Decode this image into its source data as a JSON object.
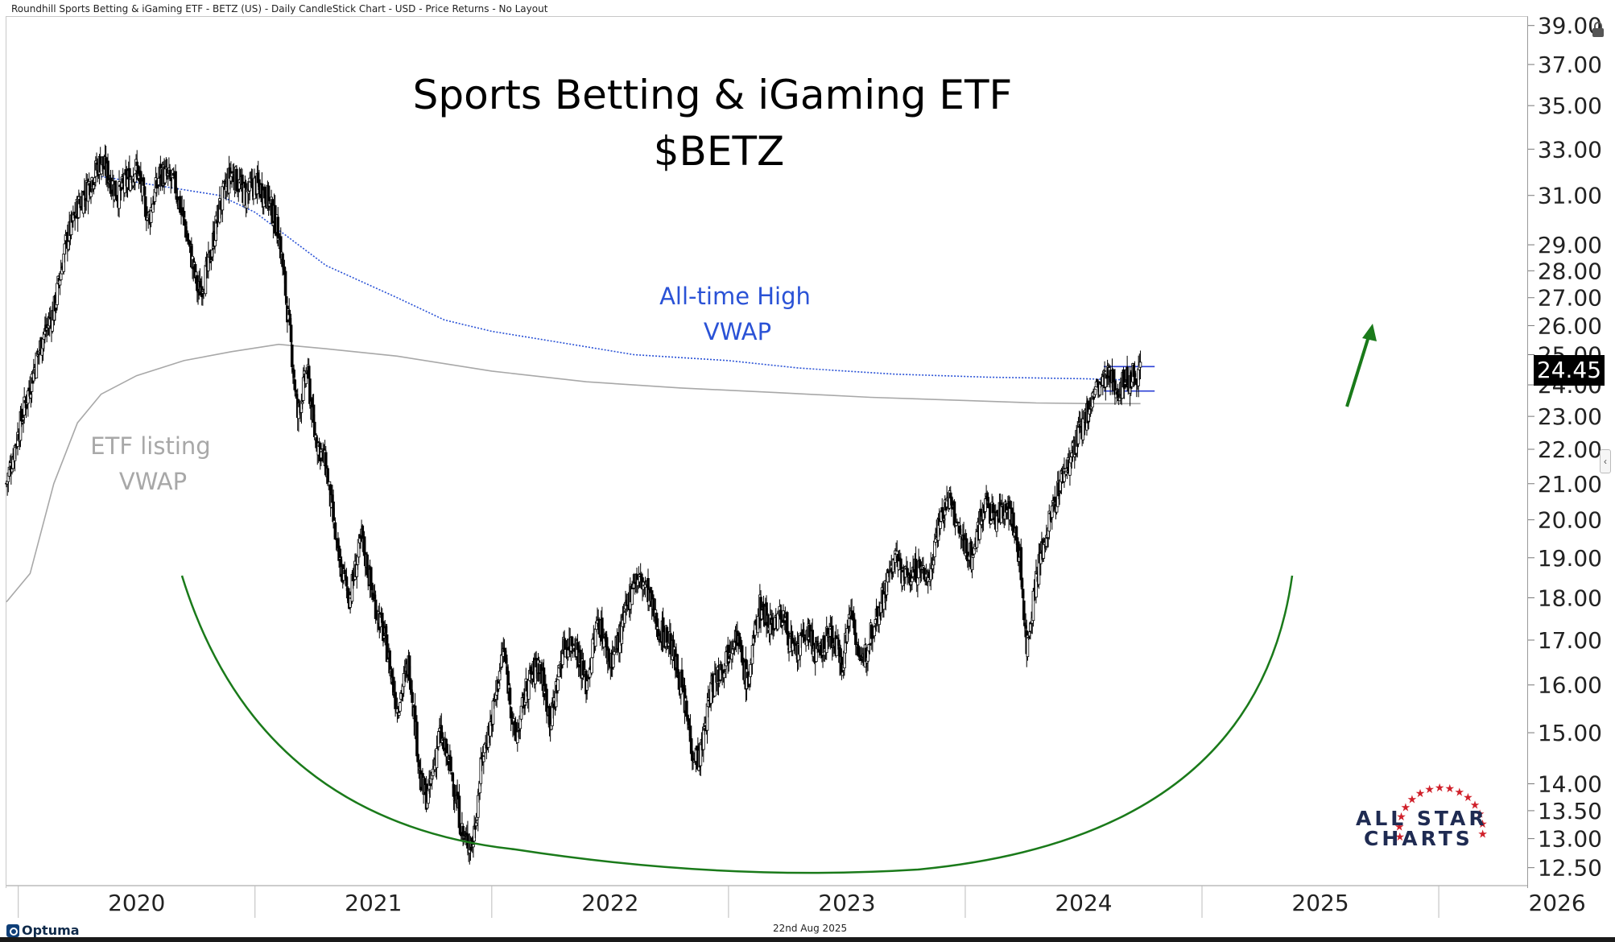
{
  "header": {
    "description": "Roundhill Sports Betting & iGaming ETF - BETZ (US) - Daily CandleStick Chart - USD - Price Returns - No Layout"
  },
  "footer": {
    "brand": "Optuma",
    "date": "22nd Aug 2025"
  },
  "logo": {
    "line1": "ALL STAR",
    "line2": "CHARTS"
  },
  "colors": {
    "candle": "#000000",
    "ath_vwap": "#2a52d6",
    "listing_vwap": "#a8a8a8",
    "arc": "#1a7a1a",
    "arrow": "#1a7a1a",
    "range_lines": "#2a3fd6",
    "logo_navy": "#1f2b52",
    "logo_star": "#d0202a"
  },
  "chart_data": {
    "type": "candlestick",
    "title": "Sports Betting & iGaming ETF",
    "subtitle": "$BETZ",
    "scale": "log",
    "ylim": [
      12.2,
      39.5
    ],
    "y_ticks": [
      {
        "value": 39,
        "label": "39.00"
      },
      {
        "value": 37,
        "label": "37.00"
      },
      {
        "value": 35,
        "label": "35.00"
      },
      {
        "value": 33,
        "label": "33.00"
      },
      {
        "value": 31,
        "label": "31.00"
      },
      {
        "value": 29,
        "label": "29.00"
      },
      {
        "value": 28,
        "label": "28.00"
      },
      {
        "value": 27,
        "label": "27.00"
      },
      {
        "value": 26,
        "label": "26.00"
      },
      {
        "value": 25,
        "label": "25.00"
      },
      {
        "value": 24,
        "label": "24.00"
      },
      {
        "value": 23,
        "label": "23.00"
      },
      {
        "value": 22,
        "label": "22.00"
      },
      {
        "value": 21,
        "label": "21.00"
      },
      {
        "value": 20,
        "label": "20.00"
      },
      {
        "value": 19,
        "label": "19.00"
      },
      {
        "value": 18,
        "label": "18.00"
      },
      {
        "value": 17,
        "label": "17.00"
      },
      {
        "value": 16,
        "label": "16.00"
      },
      {
        "value": 15,
        "label": "15.00"
      },
      {
        "value": 14,
        "label": "14.00"
      },
      {
        "value": 13.5,
        "label": "13.50"
      },
      {
        "value": 13,
        "label": "13.00"
      },
      {
        "value": 12.5,
        "label": "12.50"
      }
    ],
    "xlim": [
      2019.95,
      2026.35
    ],
    "x_ticks": [
      {
        "value": 2020,
        "label": "2020"
      },
      {
        "value": 2021,
        "label": "2021"
      },
      {
        "value": 2022,
        "label": "2022"
      },
      {
        "value": 2023,
        "label": "2023"
      },
      {
        "value": 2024,
        "label": "2024"
      },
      {
        "value": 2025,
        "label": "2025"
      },
      {
        "value": 2026,
        "label": "2026"
      }
    ],
    "last_price": "24.45",
    "price_path": [
      [
        2019.95,
        21.0
      ],
      [
        2020.0,
        22.5
      ],
      [
        2020.05,
        24.0
      ],
      [
        2020.1,
        25.5
      ],
      [
        2020.15,
        26.5
      ],
      [
        2020.2,
        29.0
      ],
      [
        2020.25,
        30.5
      ],
      [
        2020.3,
        31.5
      ],
      [
        2020.35,
        32.5
      ],
      [
        2020.42,
        31.0
      ],
      [
        2020.5,
        32.2
      ],
      [
        2020.55,
        30.0
      ],
      [
        2020.6,
        32.0
      ],
      [
        2020.66,
        31.5
      ],
      [
        2020.71,
        29.5
      ],
      [
        2020.76,
        27.2
      ],
      [
        2020.8,
        28.0
      ],
      [
        2020.85,
        30.5
      ],
      [
        2020.9,
        32.0
      ],
      [
        2020.96,
        31.0
      ],
      [
        2021.0,
        31.5
      ],
      [
        2021.05,
        31.0
      ],
      [
        2021.1,
        29.5
      ],
      [
        2021.15,
        25.5
      ],
      [
        2021.18,
        23.0
      ],
      [
        2021.22,
        24.5
      ],
      [
        2021.25,
        22.5
      ],
      [
        2021.3,
        21.5
      ],
      [
        2021.35,
        19.0
      ],
      [
        2021.4,
        18.0
      ],
      [
        2021.45,
        19.5
      ],
      [
        2021.5,
        18.0
      ],
      [
        2021.55,
        17.0
      ],
      [
        2021.6,
        15.5
      ],
      [
        2021.65,
        16.5
      ],
      [
        2021.7,
        14.0
      ],
      [
        2021.73,
        13.7
      ],
      [
        2021.78,
        15.0
      ],
      [
        2021.83,
        14.2
      ],
      [
        2021.88,
        13.0
      ],
      [
        2021.92,
        12.9
      ],
      [
        2021.96,
        14.5
      ],
      [
        2022.0,
        15.3
      ],
      [
        2022.05,
        16.8
      ],
      [
        2022.1,
        14.8
      ],
      [
        2022.15,
        16.0
      ],
      [
        2022.2,
        16.5
      ],
      [
        2022.25,
        15.2
      ],
      [
        2022.3,
        16.8
      ],
      [
        2022.35,
        17.0
      ],
      [
        2022.4,
        16.0
      ],
      [
        2022.45,
        17.5
      ],
      [
        2022.5,
        16.5
      ],
      [
        2022.55,
        17.2
      ],
      [
        2022.6,
        18.5
      ],
      [
        2022.65,
        18.3
      ],
      [
        2022.7,
        17.3
      ],
      [
        2022.75,
        17.0
      ],
      [
        2022.8,
        16.0
      ],
      [
        2022.85,
        14.6
      ],
      [
        2022.88,
        14.5
      ],
      [
        2022.93,
        16.0
      ],
      [
        2022.98,
        16.5
      ],
      [
        2023.03,
        17.2
      ],
      [
        2023.08,
        16.0
      ],
      [
        2023.13,
        17.8
      ],
      [
        2023.18,
        17.4
      ],
      [
        2023.23,
        17.6
      ],
      [
        2023.28,
        16.6
      ],
      [
        2023.33,
        17.2
      ],
      [
        2023.38,
        16.6
      ],
      [
        2023.43,
        17.2
      ],
      [
        2023.48,
        16.5
      ],
      [
        2023.52,
        17.8
      ],
      [
        2023.56,
        16.3
      ],
      [
        2023.6,
        17.2
      ],
      [
        2023.65,
        18.0
      ],
      [
        2023.7,
        19.0
      ],
      [
        2023.75,
        18.5
      ],
      [
        2023.8,
        18.7
      ],
      [
        2023.85,
        18.5
      ],
      [
        2023.88,
        19.8
      ],
      [
        2023.93,
        20.6
      ],
      [
        2023.98,
        19.5
      ],
      [
        2024.03,
        19.0
      ],
      [
        2024.08,
        20.5
      ],
      [
        2024.13,
        20.0
      ],
      [
        2024.18,
        20.5
      ],
      [
        2024.23,
        19.0
      ],
      [
        2024.26,
        16.8
      ],
      [
        2024.3,
        18.5
      ],
      [
        2024.35,
        19.8
      ],
      [
        2024.4,
        21.0
      ],
      [
        2024.45,
        21.8
      ],
      [
        2024.5,
        22.8
      ],
      [
        2024.55,
        23.8
      ],
      [
        2024.6,
        24.2
      ],
      [
        2024.65,
        23.9
      ],
      [
        2024.7,
        24.3
      ],
      [
        2024.74,
        24.45
      ]
    ],
    "series": [
      {
        "name": "All-time High VWAP",
        "points": [
          [
            2020.35,
            31.8
          ],
          [
            2020.6,
            31.4
          ],
          [
            2020.85,
            31.0
          ],
          [
            2021.0,
            30.3
          ],
          [
            2021.3,
            28.2
          ],
          [
            2021.6,
            27.0
          ],
          [
            2021.8,
            26.2
          ],
          [
            2022.0,
            25.8
          ],
          [
            2022.3,
            25.4
          ],
          [
            2022.6,
            25.0
          ],
          [
            2023.0,
            24.8
          ],
          [
            2023.3,
            24.55
          ],
          [
            2023.7,
            24.35
          ],
          [
            2024.1,
            24.25
          ],
          [
            2024.5,
            24.2
          ],
          [
            2024.74,
            24.15
          ]
        ]
      },
      {
        "name": "ETF listing VWAP",
        "points": [
          [
            2019.95,
            17.9
          ],
          [
            2020.05,
            18.6
          ],
          [
            2020.15,
            21.0
          ],
          [
            2020.25,
            22.8
          ],
          [
            2020.35,
            23.7
          ],
          [
            2020.5,
            24.3
          ],
          [
            2020.7,
            24.8
          ],
          [
            2020.9,
            25.1
          ],
          [
            2021.1,
            25.35
          ],
          [
            2021.3,
            25.2
          ],
          [
            2021.6,
            24.95
          ],
          [
            2022.0,
            24.45
          ],
          [
            2022.4,
            24.1
          ],
          [
            2022.8,
            23.9
          ],
          [
            2023.2,
            23.75
          ],
          [
            2023.6,
            23.6
          ],
          [
            2024.0,
            23.5
          ],
          [
            2024.3,
            23.42
          ],
          [
            2024.55,
            23.4
          ],
          [
            2024.74,
            23.4
          ]
        ]
      }
    ],
    "range_lines": [
      24.6,
      23.8
    ],
    "annotations": {
      "ath_label_line1": "All-time High",
      "ath_label_line2": "VWAP",
      "listing_label_line1": "ETF listing",
      "listing_label_line2": "VWAP"
    }
  }
}
